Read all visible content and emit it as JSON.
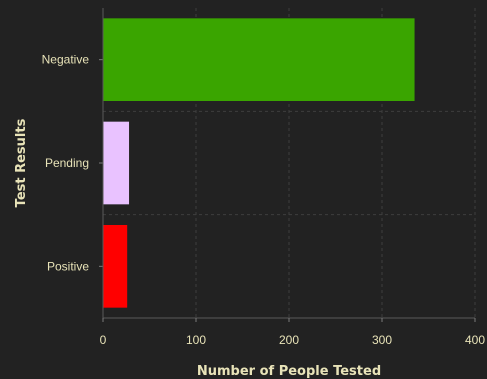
{
  "chart_data": {
    "type": "bar",
    "orientation": "horizontal",
    "categories": [
      "Negative",
      "Pending",
      "Positive"
    ],
    "values": [
      335,
      28,
      26
    ],
    "colors": [
      "#3aa500",
      "#e9c2ff",
      "#ff0000"
    ],
    "xlabel": "Number of People Tested",
    "ylabel": "Test Results",
    "xlim": [
      0,
      400
    ],
    "xticks": [
      0,
      100,
      200,
      300,
      400
    ],
    "grid": true,
    "background": "#222222",
    "text_color": "#e8e3b8"
  }
}
